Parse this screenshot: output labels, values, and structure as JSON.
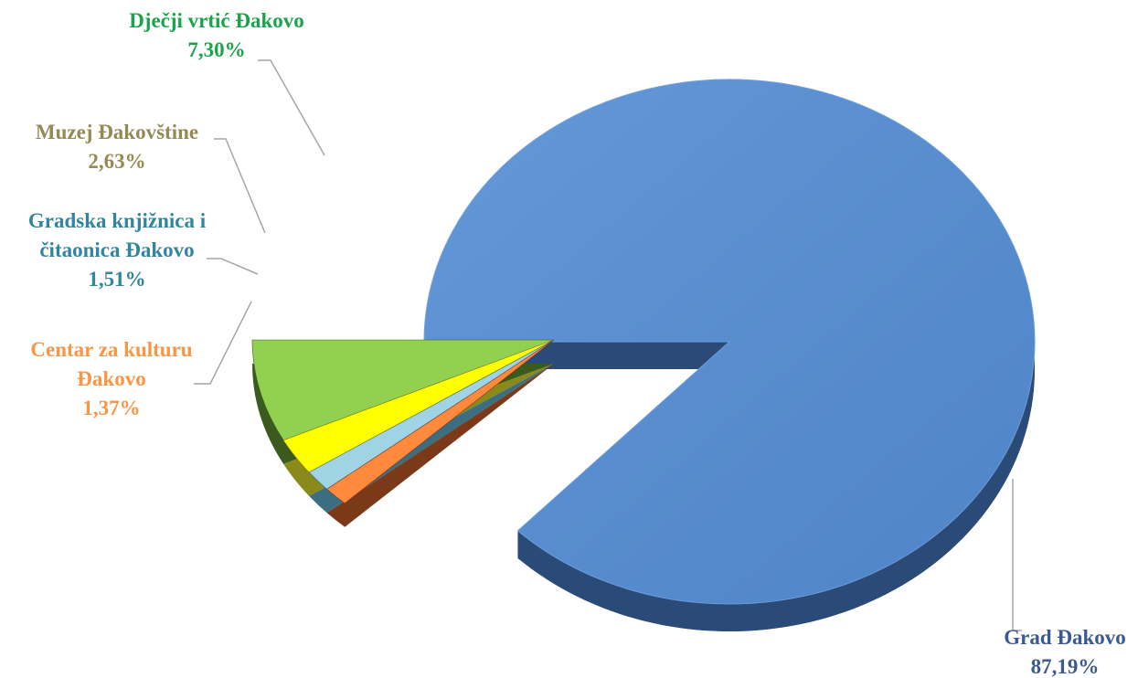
{
  "chart_data": {
    "type": "pie",
    "title": "",
    "slices": [
      {
        "name": "Grad Đakovo",
        "value_label": "87,19%",
        "value": 87.19,
        "color": "#558ED5",
        "side_color": "#2A4A78",
        "label_color": "#3B5A92"
      },
      {
        "name": "Dječji vrtić Đakovo",
        "value_label": "7,30%",
        "value": 7.3,
        "color": "#92D050",
        "side_color": "#3B5A1E",
        "label_color": "#1BA34A"
      },
      {
        "name": "Muzej Đakovštine",
        "value_label": "2,63%",
        "value": 2.63,
        "color": "#FFFF00",
        "side_color": "#8A8A1A",
        "label_color": "#948A54"
      },
      {
        "name": "Gradska knjižnica i čitaonica Đakovo",
        "value_label": "1,51%",
        "value": 1.51,
        "color": "#A0D4E4",
        "side_color": "#3B6E80",
        "label_color": "#31859C"
      },
      {
        "name": "Centar za kulturu Đakovo",
        "value_label": "1,37%",
        "value": 1.37,
        "color": "#FF8A3D",
        "side_color": "#7A3A1A",
        "label_color": "#F79646"
      }
    ]
  }
}
